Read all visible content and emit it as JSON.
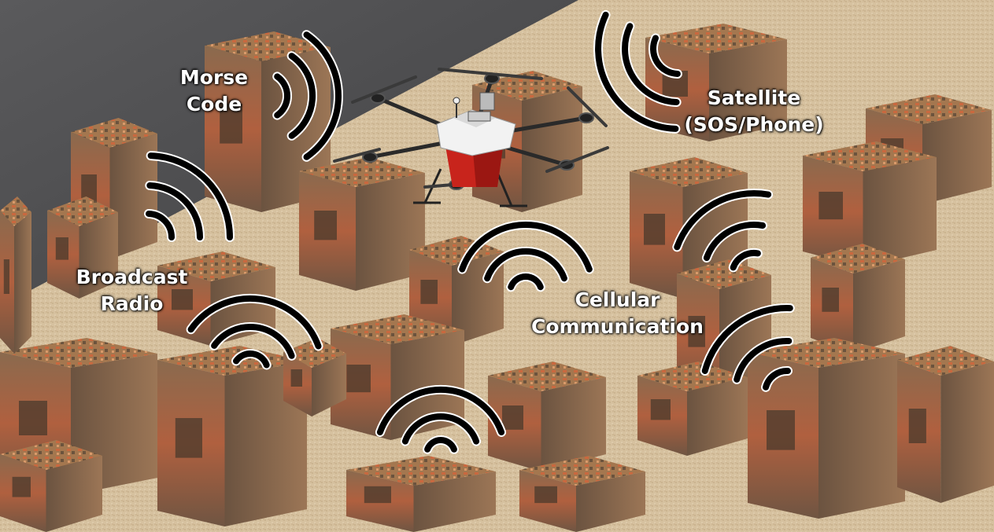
{
  "labels": {
    "morse": [
      "Morse",
      "Code"
    ],
    "satellite": [
      "Satellite",
      "(SOS/Phone)"
    ],
    "broadcast": [
      "Broadcast",
      "Radio"
    ],
    "cellular": [
      "Cellular",
      "Communication"
    ]
  },
  "colors": {
    "ground": "#d8c3a3",
    "sky": "#4a4a4c",
    "rubble_red": "#b8573a",
    "rubble_brown": "#7a5a40",
    "drone_red": "#c8241c",
    "drone_body": "#f2f2f2",
    "signal_arc": "#000000",
    "signal_outline": "#ffffff",
    "label_text": "#ffffff"
  },
  "icons": {
    "drone": "quadcopter-drone-icon",
    "signal": "signal-waves-icon",
    "building": "ruined-building-icon"
  }
}
